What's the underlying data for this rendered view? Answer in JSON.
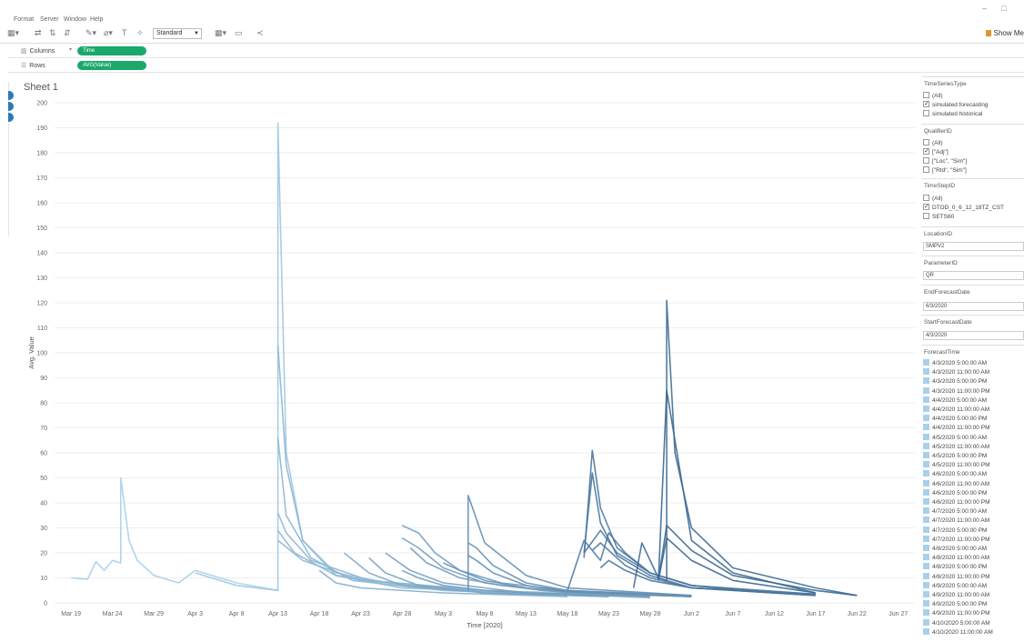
{
  "menu": [
    "Format",
    "Server",
    "Window",
    "Help"
  ],
  "window_controls": [
    "–",
    "□"
  ],
  "toolbar": {
    "fit_select": "Standard",
    "show_me": "Show Me"
  },
  "shelves": {
    "columns_label": "Columns",
    "columns_pill": "Time",
    "rows_label": "Rows",
    "rows_pill": "AVG(Value)"
  },
  "sheet_title": "Sheet 1",
  "chart_data": {
    "type": "line",
    "title": "Sheet 1",
    "xlabel": "Time [2020]",
    "ylabel": "Avg. Value",
    "ylim": [
      0,
      200
    ],
    "yticks": [
      0,
      10,
      20,
      30,
      40,
      50,
      60,
      70,
      80,
      90,
      100,
      110,
      120,
      130,
      140,
      150,
      160,
      170,
      180,
      190,
      200
    ],
    "xticks": [
      "Mar 19",
      "Mar 24",
      "Mar 29",
      "Apr 3",
      "Apr 8",
      "Apr 13",
      "Apr 18",
      "Apr 23",
      "Apr 28",
      "May 3",
      "May 8",
      "May 13",
      "May 18",
      "May 23",
      "May 28",
      "Jun 2",
      "Jun 7",
      "Jun 12",
      "Jun 17",
      "Jun 22",
      "Jun 27"
    ],
    "grid": "horizontal",
    "series": [
      {
        "x": [
          "Mar 19",
          "Mar 21",
          "Mar 22",
          "Mar 23",
          "Mar 24",
          "Mar 25",
          "Mar 25",
          "Mar 26",
          "Mar 27",
          "Mar 29",
          "Apr 1",
          "Apr 3",
          "Apr 8",
          "Apr 13"
        ],
        "values": [
          10,
          9.5,
          16.5,
          13,
          17,
          16,
          50,
          25,
          17,
          11,
          8,
          13,
          8,
          5
        ]
      },
      {
        "x": [
          "Apr 3",
          "Apr 8",
          "Apr 13",
          "Apr 13",
          "Apr 14",
          "Apr 16",
          "Apr 20",
          "Apr 28",
          "May 8",
          "May 18"
        ],
        "values": [
          12,
          7,
          5,
          192,
          60,
          25,
          12,
          7,
          5,
          4
        ]
      },
      {
        "x": [
          "Apr 13",
          "Apr 14",
          "Apr 16",
          "Apr 20",
          "Apr 28",
          "May 13"
        ],
        "values": [
          103,
          55,
          25,
          11,
          6,
          4
        ]
      },
      {
        "x": [
          "Apr 13",
          "Apr 14",
          "Apr 17",
          "Apr 22",
          "May 3",
          "May 18"
        ],
        "values": [
          66,
          35,
          18,
          9,
          5,
          3
        ]
      },
      {
        "x": [
          "Apr 13",
          "Apr 14",
          "Apr 17",
          "Apr 24",
          "May 8",
          "May 23"
        ],
        "values": [
          36,
          28,
          17,
          9,
          5,
          3
        ]
      },
      {
        "x": [
          "Apr 13",
          "Apr 15",
          "Apr 20",
          "May 1",
          "May 18"
        ],
        "values": [
          29,
          20,
          11,
          6,
          3
        ]
      },
      {
        "x": [
          "Apr 13",
          "Apr 16",
          "Apr 23",
          "May 8",
          "May 28"
        ],
        "values": [
          25,
          17,
          9,
          5,
          2
        ]
      },
      {
        "x": [
          "Apr 18",
          "Apr 20",
          "Apr 23",
          "May 3",
          "May 18"
        ],
        "values": [
          13,
          8,
          6,
          4,
          2.5
        ]
      },
      {
        "x": [
          "Apr 21",
          "Apr 24",
          "Apr 28",
          "May 8",
          "May 23"
        ],
        "values": [
          20,
          12,
          7,
          4,
          2.5
        ]
      },
      {
        "x": [
          "Apr 24",
          "Apr 26",
          "Apr 30",
          "May 8",
          "May 23"
        ],
        "values": [
          18,
          12,
          7,
          4,
          2.5
        ]
      },
      {
        "x": [
          "Apr 26",
          "Apr 29",
          "May 3",
          "May 8",
          "May 13",
          "May 28"
        ],
        "values": [
          20,
          13,
          8,
          6,
          4,
          2.5
        ]
      },
      {
        "x": [
          "Apr 28",
          "Apr 30",
          "May 3",
          "May 8",
          "May 13",
          "May 28"
        ],
        "values": [
          13,
          10,
          7,
          5,
          4,
          2.5
        ]
      },
      {
        "x": [
          "Apr 28",
          "Apr 30",
          "May 2",
          "May 5",
          "May 10",
          "May 18",
          "Jun 2"
        ],
        "values": [
          31,
          28,
          20,
          13,
          8,
          5,
          2.5
        ]
      },
      {
        "x": [
          "Apr 28",
          "Apr 30",
          "May 3",
          "May 8",
          "May 15",
          "May 28"
        ],
        "values": [
          26,
          22,
          14,
          8,
          5,
          2.5
        ]
      },
      {
        "x": [
          "Apr 29",
          "May 1",
          "May 5",
          "May 10",
          "May 18",
          "Jun 2"
        ],
        "values": [
          22,
          16,
          10,
          7,
          4,
          2.5
        ]
      },
      {
        "x": [
          "May 3",
          "May 5",
          "May 8",
          "May 13",
          "May 18",
          "Jun 2"
        ],
        "values": [
          16,
          13,
          9,
          6,
          4.5,
          2.5
        ]
      },
      {
        "x": [
          "May 6",
          "May 6",
          "May 8",
          "May 13",
          "May 18",
          "Jun 2"
        ],
        "values": [
          5,
          43,
          24,
          11,
          6,
          3
        ]
      },
      {
        "x": [
          "May 6",
          "May 7",
          "May 9",
          "May 13",
          "May 18",
          "Jun 2"
        ],
        "values": [
          24,
          22,
          15,
          8,
          5,
          3
        ]
      },
      {
        "x": [
          "May 6",
          "May 7",
          "May 9",
          "May 13",
          "May 18",
          "Jun 2"
        ],
        "values": [
          19,
          17,
          12,
          7,
          4.5,
          2.5
        ]
      },
      {
        "x": [
          "May 18",
          "May 20",
          "May 22",
          "May 23",
          "May 25",
          "May 28",
          "Jun 2",
          "Jun 12"
        ],
        "values": [
          5,
          25,
          17,
          28,
          20,
          12,
          7,
          4
        ]
      },
      {
        "x": [
          "May 20",
          "May 21",
          "May 22",
          "May 24",
          "May 28",
          "Jun 2",
          "Jun 12"
        ],
        "values": [
          18,
          61,
          38,
          22,
          12,
          7,
          4
        ]
      },
      {
        "x": [
          "May 20",
          "May 21",
          "May 22",
          "May 24",
          "May 28",
          "Jun 2",
          "Jun 17"
        ],
        "values": [
          20,
          52,
          32,
          19,
          11,
          6,
          3.5
        ]
      },
      {
        "x": [
          "May 20",
          "May 22",
          "May 24",
          "May 28",
          "Jun 2",
          "Jun 17"
        ],
        "values": [
          20,
          29,
          20,
          12,
          7,
          3.5
        ]
      },
      {
        "x": [
          "May 21",
          "May 22",
          "May 25",
          "May 28",
          "Jun 2",
          "Jun 17"
        ],
        "values": [
          21,
          24,
          15,
          10,
          6,
          3
        ]
      },
      {
        "x": [
          "May 22",
          "May 23",
          "May 25",
          "May 28",
          "Jun 2",
          "Jun 17"
        ],
        "values": [
          14,
          17,
          13,
          9,
          6,
          3
        ]
      },
      {
        "x": [
          "May 26",
          "May 27",
          "May 29",
          "May 30",
          "May 30",
          "May 31",
          "Jun 2",
          "Jun 7",
          "Jun 17",
          "Jun 22"
        ],
        "values": [
          6,
          24,
          10,
          9,
          121,
          60,
          30,
          14,
          6,
          3
        ]
      },
      {
        "x": [
          "May 29",
          "May 30",
          "Jun 2",
          "Jun 7",
          "Jun 17"
        ],
        "values": [
          9,
          85,
          25,
          12,
          4
        ]
      },
      {
        "x": [
          "May 29",
          "May 30",
          "Jun 2",
          "Jun 7",
          "Jun 17",
          "Jun 22"
        ],
        "values": [
          9,
          31,
          21,
          11,
          5,
          3
        ]
      },
      {
        "x": [
          "May 29",
          "May 30",
          "Jun 2",
          "Jun 7",
          "Jun 17"
        ],
        "values": [
          9,
          26,
          17,
          9,
          4
        ]
      }
    ]
  },
  "filters": {
    "time_series_type": {
      "title": "TimeSeriesType",
      "items": [
        {
          "label": "(All)",
          "checked": false
        },
        {
          "label": "simulated forecasting",
          "checked": true
        },
        {
          "label": "simulated historical",
          "checked": false
        }
      ]
    },
    "qualifier_id": {
      "title": "QualifierID",
      "items": [
        {
          "label": "(All)",
          "checked": false
        },
        {
          "label": "[\"Adj\"]",
          "checked": true
        },
        {
          "label": "[\"Loc\", \"Sim\"]",
          "checked": false
        },
        {
          "label": "[\"Rtd\", \"Sim\"]",
          "checked": false
        }
      ]
    },
    "time_step_id": {
      "title": "TimeStepID",
      "items": [
        {
          "label": "(All)",
          "checked": false
        },
        {
          "label": "DTOD_0_6_12_18TZ_CST",
          "checked": true
        },
        {
          "label": "SETS60",
          "checked": false
        }
      ]
    },
    "location_id": {
      "title": "LocationID",
      "value": "SMPV2"
    },
    "parameter_id": {
      "title": "ParameterID",
      "value": "QR"
    },
    "end_forecast_date": {
      "title": "EndForecastDate",
      "value": "6/3/2020"
    },
    "start_forecast_date": {
      "title": "StartForecastDate",
      "value": "4/3/2020"
    },
    "forecast_time": {
      "title": "ForecastTime",
      "swatch_color": "#a9d0ea",
      "items": [
        "4/3/2020 5:00:00 AM",
        "4/3/2020 11:00:00 AM",
        "4/3/2020 5:00:00 PM",
        "4/3/2020 11:00:00 PM",
        "4/4/2020 5:00:00 AM",
        "4/4/2020 11:00:00 AM",
        "4/4/2020 5:00:00 PM",
        "4/4/2020 11:00:00 PM",
        "4/5/2020 5:00:00 AM",
        "4/5/2020 11:00:00 AM",
        "4/5/2020 5:00:00 PM",
        "4/5/2020 11:00:00 PM",
        "4/6/2020 5:00:00 AM",
        "4/6/2020 11:00:00 AM",
        "4/6/2020 5:00:00 PM",
        "4/6/2020 11:00:00 PM",
        "4/7/2020 5:00:00 AM",
        "4/7/2020 11:00:00 AM",
        "4/7/2020 5:00:00 PM",
        "4/7/2020 11:00:00 PM",
        "4/8/2020 5:00:00 AM",
        "4/8/2020 11:00:00 AM",
        "4/8/2020 5:00:00 PM",
        "4/8/2020 11:00:00 PM",
        "4/9/2020 5:00:00 AM",
        "4/9/2020 11:00:00 AM",
        "4/9/2020 5:00:00 PM",
        "4/9/2020 11:00:00 PM",
        "4/10/2020 5:00:00 AM",
        "4/10/2020 11:00:00 AM"
      ]
    }
  },
  "colors": {
    "series_light": "#a9d0ea",
    "series_dark": "#2c5a85",
    "pill": "#1aa96b"
  }
}
